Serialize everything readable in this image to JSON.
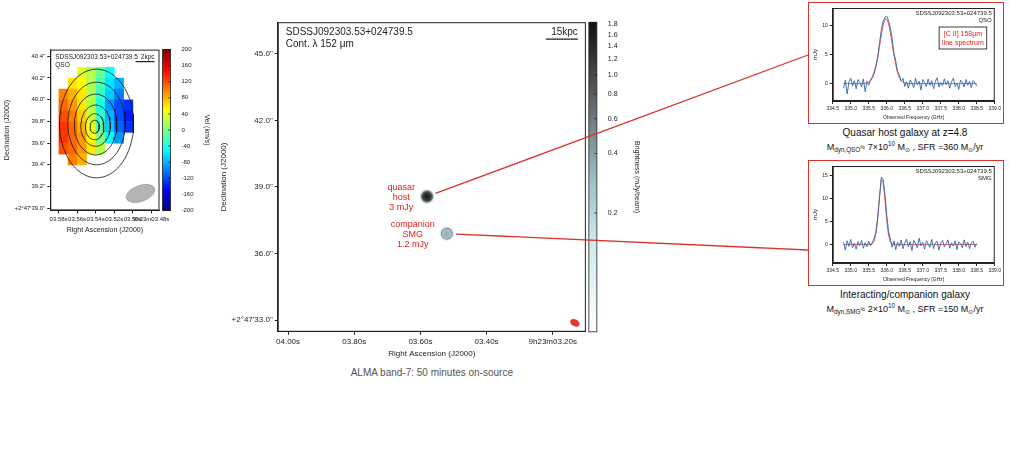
{
  "chart_data": [
    {
      "type": "heatmap",
      "title": "SDSSJ092303.53+024739.5",
      "subtitle": "QSO",
      "scale_bar": "2kpc",
      "x_label": "Right Ascension (J2000)",
      "y_label": "Declination (J2000)",
      "xlim": [
        3.589,
        3.471
      ],
      "xticks": [
        {
          "value": 3.58,
          "label": "03.58s"
        },
        {
          "value": 3.56,
          "label": "03.56s"
        },
        {
          "value": 3.54,
          "label": "03.54s"
        },
        {
          "value": 3.52,
          "label": "03.52s"
        },
        {
          "value": 3.5,
          "label": "03.50s"
        },
        {
          "value": 3.48,
          "label": "9h23m03.48s"
        }
      ],
      "ylim": [
        38.98,
        40.46
      ],
      "yticks": [
        {
          "value": 39,
          "label": "+2°47'39.0\""
        },
        {
          "value": 39.2,
          "label": "39.2\""
        },
        {
          "value": 39.4,
          "label": "39.4\""
        },
        {
          "value": 39.6,
          "label": "39.6\""
        },
        {
          "value": 39.8,
          "label": "39.8\""
        },
        {
          "value": 40,
          "label": "40.0\""
        },
        {
          "value": 40.2,
          "label": "40.2\""
        },
        {
          "value": 40.4,
          "label": "40.4\""
        }
      ],
      "x": [
        3.575,
        3.565,
        3.555,
        3.545,
        3.535,
        3.525,
        3.515,
        3.505
      ],
      "y": [
        40.25,
        40.15,
        40.05,
        39.95,
        39.85,
        39.75,
        39.65,
        39.55,
        39.45
      ],
      "cells": [
        [
          null,
          null,
          40,
          20,
          -10,
          -50,
          null,
          null
        ],
        [
          null,
          60,
          50,
          20,
          -20,
          -60,
          -80,
          null
        ],
        [
          100,
          80,
          60,
          20,
          -30,
          -70,
          -100,
          null
        ],
        [
          110,
          90,
          60,
          20,
          -40,
          -90,
          -120,
          -130
        ],
        [
          120,
          100,
          70,
          30,
          -30,
          -80,
          -120,
          -140
        ],
        [
          130,
          110,
          80,
          40,
          -20,
          -70,
          -110,
          -130
        ],
        [
          130,
          110,
          90,
          50,
          0,
          -50,
          -90,
          null
        ],
        [
          120,
          110,
          90,
          60,
          20,
          null,
          null,
          null
        ],
        [
          null,
          100,
          80,
          null,
          null,
          null,
          null,
          null
        ]
      ],
      "colorbar": {
        "label": "Vel (km/s)",
        "lim": [
          -200,
          200
        ],
        "ticks": [
          200,
          160,
          120,
          80,
          40,
          0,
          -40,
          -80,
          -120,
          -160,
          -200
        ]
      },
      "contours": [
        {
          "x": 3.539,
          "y": 39.78,
          "rx": 0.04,
          "ry": 0.5
        },
        {
          "x": 3.539,
          "y": 39.78,
          "rx": 0.031,
          "ry": 0.38
        },
        {
          "x": 3.54,
          "y": 39.77,
          "rx": 0.023,
          "ry": 0.28
        },
        {
          "x": 3.54,
          "y": 39.76,
          "rx": 0.016,
          "ry": 0.19
        },
        {
          "x": 3.541,
          "y": 39.75,
          "rx": 0.01,
          "ry": 0.12
        },
        {
          "x": 3.541,
          "y": 39.75,
          "rx": 0.005,
          "ry": 0.06
        }
      ]
    },
    {
      "type": "map",
      "title": "SDSSJ092303.53+024739.5",
      "subtitle": "Cont. λ 152 μm",
      "scale_bar": "15kpc",
      "x_label": "Right Ascension (J2000)",
      "y_label": "Declination (J2000)",
      "xlim": [
        4.031,
        3.1
      ],
      "xticks": [
        {
          "value": 4,
          "label": "04.00s"
        },
        {
          "value": 3.8,
          "label": "03.80s"
        },
        {
          "value": 3.6,
          "label": "03.60s"
        },
        {
          "value": 3.4,
          "label": "03.40s"
        },
        {
          "value": 3.2,
          "label": "9h23m03.20s"
        }
      ],
      "ylim": [
        32.48,
        46.42
      ],
      "yticks": [
        {
          "value": 33,
          "label": "+2°47'33.0\""
        },
        {
          "value": 36,
          "label": "36.0\""
        },
        {
          "value": 39,
          "label": "39.0\""
        },
        {
          "value": 42,
          "label": "42.0\""
        },
        {
          "value": 45,
          "label": "45.0\""
        }
      ],
      "sources": [
        {
          "labels": [
            "quasar",
            "host",
            "3 mJy"
          ],
          "x": 3.58,
          "y": 38.57,
          "peak": 1.8
        },
        {
          "labels": [
            "companion",
            "SMG",
            "1.2 mJy"
          ],
          "x": 3.52,
          "y": 36.9,
          "peak": 0.35
        }
      ],
      "colorbar": {
        "label": "Brightness (mJy/beam)",
        "lim": [
          0.05,
          1.85
        ],
        "log": true,
        "ticks": [
          1.8,
          1.6,
          1.4,
          1.2,
          {
            "value": 1,
            "label": "1.0"
          },
          0.8,
          0.6,
          0.4,
          0.2
        ]
      },
      "caption": "ALMA band-7: 50 minutes on-source"
    },
    {
      "type": "line",
      "title": "SDSSJ092303.53+024739.5",
      "subtitle": "QSO",
      "x_label": "Observed Frequency (GHz)",
      "y_label": "mJy",
      "xlim": [
        334.5,
        339
      ],
      "xticks": [
        334.5,
        {
          "value": 335,
          "label": "335.0"
        },
        335.5,
        {
          "value": 336,
          "label": "336.0"
        },
        336.5,
        {
          "value": 337,
          "label": "337.0"
        },
        337.5,
        {
          "value": 338,
          "label": "338.0"
        },
        338.5,
        {
          "value": 339,
          "label": "339.0"
        }
      ],
      "ylim": [
        -3,
        13
      ],
      "yticks": [
        0,
        5,
        10
      ],
      "x": [
        334.8,
        334.85,
        334.9,
        334.95,
        335,
        335.05,
        335.1,
        335.15,
        335.2,
        335.25,
        335.3,
        335.35,
        335.4,
        335.45,
        335.5,
        335.55,
        335.6,
        335.65,
        335.7,
        335.75,
        335.8,
        335.85,
        335.9,
        335.95,
        336,
        336.05,
        336.1,
        336.15,
        336.2,
        336.25,
        336.3,
        336.35,
        336.4,
        336.45,
        336.5,
        336.55,
        336.6,
        336.65,
        336.7,
        336.75,
        336.8,
        336.85,
        336.9,
        336.95,
        337,
        337.05,
        337.1,
        337.15,
        337.2,
        337.25,
        337.3,
        337.35,
        337.4,
        337.45,
        337.5,
        337.55,
        337.6,
        337.65,
        337.7,
        337.75,
        337.8,
        337.85,
        337.9,
        337.95,
        338,
        338.05,
        338.1,
        338.15,
        338.2,
        338.25,
        338.3,
        338.35,
        338.4,
        338.45,
        338.5
      ],
      "series": [
        {
          "color": "#2f67b1",
          "values": [
            -0.8,
            0.6,
            -1.8,
            0.3,
            0.9,
            -0.4,
            0.5,
            -0.9,
            0.7,
            0.2,
            -0.6,
            0.8,
            -1.4,
            0.4,
            -0.3,
            0.6,
            1.2,
            2.0,
            3.1,
            4.6,
            7.0,
            9.3,
            10.8,
            11.4,
            11.6,
            10.9,
            9.6,
            7.8,
            5.2,
            3.9,
            2.1,
            1.5,
            0.4,
            0.9,
            -0.5,
            0.3,
            -0.8,
            0.6,
            0.1,
            -0.7,
            0.9,
            -0.2,
            0.4,
            -1.1,
            0.7,
            0.2,
            -0.5,
            0.8,
            -0.3,
            0.5,
            -0.9,
            0.4,
            1.0,
            -0.6,
            0.2,
            -0.4,
            0.8,
            -0.2,
            0.5,
            -0.8,
            0.3,
            0.9,
            -0.5,
            0.1,
            -1.0,
            0.6,
            0.2,
            -0.6,
            0.7,
            -0.3,
            0.4,
            -0.7,
            0.5,
            0.1,
            -0.4
          ]
        },
        {
          "color": "#e8452f",
          "values": [
            0,
            0,
            0,
            0,
            0,
            0,
            0,
            0,
            0,
            0,
            0,
            0,
            0.03,
            0.09,
            0.21,
            0.46,
            0.92,
            1.7,
            2.89,
            4.49,
            6.39,
            8.36,
            10.02,
            11.03,
            11.12,
            10.29,
            8.73,
            6.79,
            4.85,
            3.17,
            1.9,
            1.05,
            0.53,
            0.25,
            0.1,
            0.04,
            0,
            0,
            0,
            0,
            0,
            0,
            0,
            0,
            0,
            0,
            0,
            0,
            0,
            0,
            0,
            0,
            0,
            0,
            0,
            0,
            0,
            0,
            0,
            0,
            0,
            0,
            0,
            0,
            0,
            0,
            0,
            0,
            0,
            0,
            0,
            0,
            0,
            0,
            0
          ]
        }
      ],
      "annotation": [
        "[C II] 158μm",
        "line spectrum"
      ],
      "caption": [
        "Quasar host galaxy at z=4.8",
        [
          {
            "text": "M"
          },
          {
            "sub": "dyn,QSO"
          },
          {
            "text": "≈ 7×10"
          },
          {
            "sup": "10"
          },
          {
            "text": " M"
          },
          {
            "sub": "⊙"
          },
          {
            "text": " , SFR =360 M"
          },
          {
            "sub": "⊙"
          },
          {
            "text": "/yr"
          }
        ]
      ]
    },
    {
      "type": "line",
      "title": "SDSSJ092303.53+024739.5",
      "subtitle": "SMG",
      "x_label": "Observed Frequency (GHz)",
      "y_label": "mJy",
      "xlim": [
        334.5,
        339
      ],
      "xticks": [
        334.5,
        {
          "value": 335,
          "label": "335.0"
        },
        335.5,
        {
          "value": 336,
          "label": "336.0"
        },
        336.5,
        {
          "value": 337,
          "label": "337.0"
        },
        337.5,
        {
          "value": 338,
          "label": "338.0"
        },
        338.5,
        {
          "value": 339,
          "label": "339.0"
        }
      ],
      "ylim": [
        -4,
        17
      ],
      "yticks": [
        0,
        5,
        10,
        15
      ],
      "x": [
        334.8,
        334.85,
        334.9,
        334.95,
        335,
        335.05,
        335.1,
        335.15,
        335.2,
        335.25,
        335.3,
        335.35,
        335.4,
        335.45,
        335.5,
        335.55,
        335.6,
        335.65,
        335.7,
        335.75,
        335.8,
        335.85,
        335.9,
        335.95,
        336,
        336.05,
        336.1,
        336.15,
        336.2,
        336.25,
        336.3,
        336.35,
        336.4,
        336.45,
        336.5,
        336.55,
        336.6,
        336.65,
        336.7,
        336.75,
        336.8,
        336.85,
        336.9,
        336.95,
        337,
        337.05,
        337.1,
        337.15,
        337.2,
        337.25,
        337.3,
        337.35,
        337.4,
        337.45,
        337.5,
        337.55,
        337.6,
        337.65,
        337.7,
        337.75,
        337.8,
        337.85,
        337.9,
        337.95,
        338,
        338.05,
        338.1,
        338.15,
        338.2,
        338.25,
        338.3,
        338.35,
        338.4,
        338.45,
        338.5
      ],
      "series": [
        {
          "color": "#2f67b1",
          "values": [
            0.5,
            -1.2,
            0.8,
            -0.4,
            1.1,
            -0.7,
            0.3,
            -1.0,
            0.6,
            -0.2,
            0.9,
            -0.8,
            0.4,
            -0.5,
            0.7,
            -0.3,
            0.5,
            1.3,
            2.8,
            5.9,
            10.2,
            14.6,
            14.1,
            10.9,
            6.4,
            2.9,
            1.2,
            -0.6,
            0.8,
            -1.1,
            0.5,
            -0.4,
            1.0,
            -0.9,
            0.3,
            1.2,
            -0.5,
            0.6,
            -1.3,
            0.9,
            0.2,
            -0.7,
            1.4,
            -0.3,
            0.5,
            -1.0,
            0.8,
            0.1,
            -0.6,
            1.1,
            -0.9,
            0.4,
            0.7,
            -1.2,
            0.3,
            0.9,
            -0.5,
            0.2,
            1.0,
            -0.8,
            0.4,
            -0.3,
            0.8,
            -1.1,
            0.6,
            0.2,
            -0.7,
            1.0,
            -0.4,
            0.5,
            -0.9,
            0.3,
            0.7,
            -0.6,
            0.2
          ]
        },
        {
          "color": "#e8452f",
          "values": [
            0,
            0,
            0,
            0,
            0,
            0,
            0,
            0,
            0,
            0,
            0,
            0,
            0,
            0,
            0,
            0.03,
            0.16,
            0.72,
            2.42,
            5.92,
            10.64,
            14.05,
            13.62,
            9.7,
            5.07,
            1.95,
            0.55,
            0.11,
            0.02,
            0,
            0,
            0,
            0,
            0,
            0,
            0,
            0,
            0,
            0,
            0,
            0,
            0,
            0,
            0,
            0,
            0,
            0,
            0,
            0,
            0,
            0,
            0,
            0,
            0,
            0,
            0,
            0,
            0,
            0,
            0,
            0,
            0,
            0,
            0,
            0,
            0,
            0,
            0,
            0,
            0,
            0,
            0,
            0,
            0,
            0
          ]
        }
      ],
      "caption": [
        "Interacting/companion galaxy",
        [
          {
            "text": "M"
          },
          {
            "sub": "dyn,SMG"
          },
          {
            "text": "≈ 2×10"
          },
          {
            "sup": "10"
          },
          {
            "text": " M"
          },
          {
            "sub": "⊙"
          },
          {
            "text": " , SFR =150 M"
          },
          {
            "sub": "⊙"
          },
          {
            "text": "/yr"
          }
        ]
      ]
    }
  ]
}
